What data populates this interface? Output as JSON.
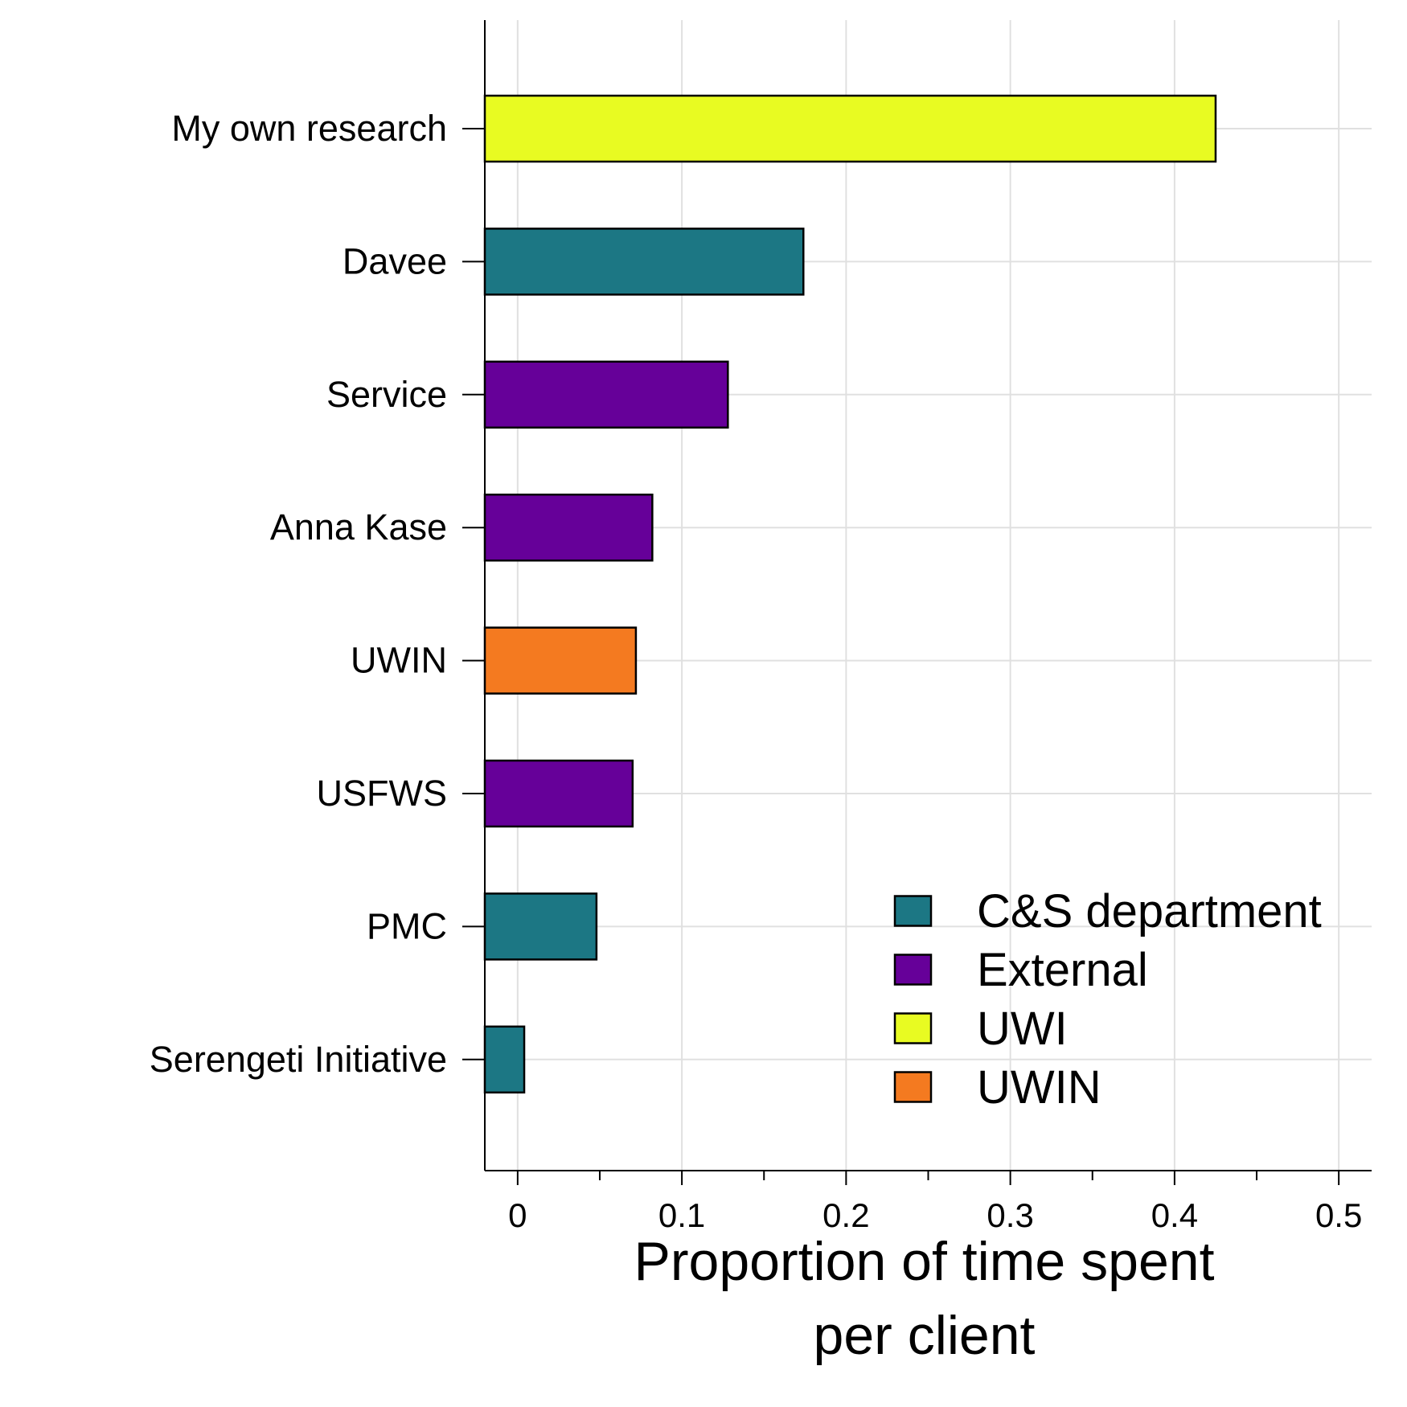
{
  "chart_data": {
    "type": "bar",
    "orientation": "horizontal",
    "categories": [
      "My own research",
      "Davee",
      "Service",
      "Anna Kase",
      "UWIN",
      "USFWS",
      "PMC",
      "Serengeti Initiative"
    ],
    "values": [
      0.425,
      0.174,
      0.128,
      0.082,
      0.072,
      0.07,
      0.048,
      0.004
    ],
    "groups": [
      "UWI",
      "C&S department",
      "External",
      "External",
      "UWIN",
      "External",
      "C&S department",
      "C&S department"
    ],
    "xlabel": [
      "Proportion of time spent",
      "per client"
    ],
    "xlim": [
      -0.02,
      0.52
    ],
    "xticks": [
      0,
      0.1,
      0.2,
      0.3,
      0.4,
      0.5
    ],
    "xtick_labels": [
      "0",
      "0.1",
      "0.2",
      "0.3",
      "0.4",
      "0.5"
    ],
    "x_minor_ticks": [
      0.05,
      0.15,
      0.25,
      0.35,
      0.45
    ],
    "grid": true,
    "legend": {
      "placement": "bottom-right",
      "entries": [
        {
          "label": "C&S department",
          "color": "#1c7784"
        },
        {
          "label": "External",
          "color": "#660099"
        },
        {
          "label": "UWI",
          "color": "#e8fb22"
        },
        {
          "label": "UWIN",
          "color": "#f47a20"
        }
      ]
    }
  }
}
